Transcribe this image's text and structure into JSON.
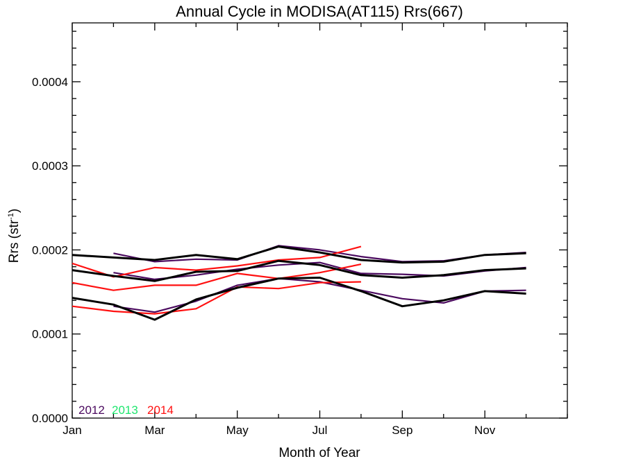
{
  "chart_data": {
    "type": "line",
    "title": "Annual Cycle in MODISA(AT115) Rrs(667)",
    "xlabel": "Month of Year",
    "ylabel_main": "Rrs (str",
    "ylabel_sup": "-1",
    "ylabel_close": ")",
    "xlim": [
      1,
      13
    ],
    "ylim": [
      0.0,
      0.00047
    ],
    "x_ticks": [
      {
        "value": 1,
        "label": "Jan"
      },
      {
        "value": 3,
        "label": "Mar"
      },
      {
        "value": 5,
        "label": "May"
      },
      {
        "value": 7,
        "label": "Jul"
      },
      {
        "value": 9,
        "label": "Sep"
      },
      {
        "value": 11,
        "label": "Nov"
      }
    ],
    "y_ticks": [
      {
        "value": 0.0,
        "label": "0.0000"
      },
      {
        "value": 0.0001,
        "label": "0.0001"
      },
      {
        "value": 0.0002,
        "label": "0.0002"
      },
      {
        "value": 0.0003,
        "label": "0.0003"
      },
      {
        "value": 0.0004,
        "label": "0.0004"
      }
    ],
    "legend": {
      "placement": "bottom-left",
      "entries": [
        {
          "label": "2012",
          "color": "#4b0a5f"
        },
        {
          "label": "2013",
          "color": "#1ee66e"
        },
        {
          "label": "2014",
          "color": "#ff1010"
        }
      ]
    },
    "series": [
      {
        "color": "#4b0a5f",
        "width": 2.2,
        "x": [
          2,
          3,
          4,
          5,
          6,
          7,
          8,
          9,
          10,
          11,
          12
        ],
        "y": [
          0.000196,
          0.000186,
          0.000189,
          0.000188,
          0.000205,
          0.0002,
          0.000192,
          0.000186,
          0.000187,
          0.000194,
          0.000197
        ]
      },
      {
        "color": "#4b0a5f",
        "width": 2.2,
        "x": [
          2,
          3,
          4,
          5,
          6,
          7,
          8,
          9,
          10,
          11,
          12
        ],
        "y": [
          0.000173,
          0.000165,
          0.00017,
          0.000177,
          0.000182,
          0.000185,
          0.000172,
          0.000171,
          0.000169,
          0.000175,
          0.000179
        ]
      },
      {
        "color": "#4b0a5f",
        "width": 2.2,
        "x": [
          2,
          3,
          4,
          5,
          6,
          7,
          8,
          9,
          10,
          11,
          12
        ],
        "y": [
          0.000133,
          0.000126,
          0.000139,
          0.000158,
          0.000166,
          0.000162,
          0.000152,
          0.000142,
          0.000137,
          0.000151,
          0.000152
        ]
      },
      {
        "color": "#ff1010",
        "width": 2.2,
        "x": [
          1,
          2,
          3,
          4,
          5,
          6,
          7,
          8
        ],
        "y": [
          0.000184,
          0.000168,
          0.000179,
          0.000176,
          0.000181,
          0.000188,
          0.000191,
          0.000204
        ]
      },
      {
        "color": "#ff1010",
        "width": 2.2,
        "x": [
          1,
          2,
          3,
          4,
          5,
          6,
          7,
          8
        ],
        "y": [
          0.000161,
          0.000152,
          0.000158,
          0.000158,
          0.000172,
          0.000166,
          0.000173,
          0.000183
        ]
      },
      {
        "color": "#ff1010",
        "width": 2.2,
        "x": [
          1,
          2,
          3,
          4,
          5,
          6,
          7,
          8
        ],
        "y": [
          0.000133,
          0.000127,
          0.000124,
          0.00013,
          0.000156,
          0.000154,
          0.000161,
          0.000162
        ]
      },
      {
        "color": "#000000",
        "width": 3,
        "x": [
          1,
          2,
          3,
          4,
          5,
          6,
          7,
          8,
          9,
          10,
          11,
          12
        ],
        "y": [
          0.000194,
          0.000191,
          0.000188,
          0.000194,
          0.000189,
          0.000204,
          0.000197,
          0.000188,
          0.000185,
          0.000186,
          0.000194,
          0.000196
        ]
      },
      {
        "color": "#000000",
        "width": 3,
        "x": [
          1,
          2,
          3,
          4,
          5,
          6,
          7,
          8,
          9,
          10,
          11,
          12
        ],
        "y": [
          0.000176,
          0.000169,
          0.000163,
          0.000174,
          0.000175,
          0.000187,
          0.000182,
          0.00017,
          0.000167,
          0.00017,
          0.000176,
          0.000178
        ]
      },
      {
        "color": "#000000",
        "width": 3,
        "x": [
          1,
          2,
          3,
          4,
          5,
          6,
          7,
          8,
          9,
          10,
          11,
          12
        ],
        "y": [
          0.000143,
          0.000135,
          0.000117,
          0.000141,
          0.000155,
          0.000166,
          0.000167,
          0.000151,
          0.000133,
          0.00014,
          0.000151,
          0.000148
        ]
      }
    ]
  }
}
